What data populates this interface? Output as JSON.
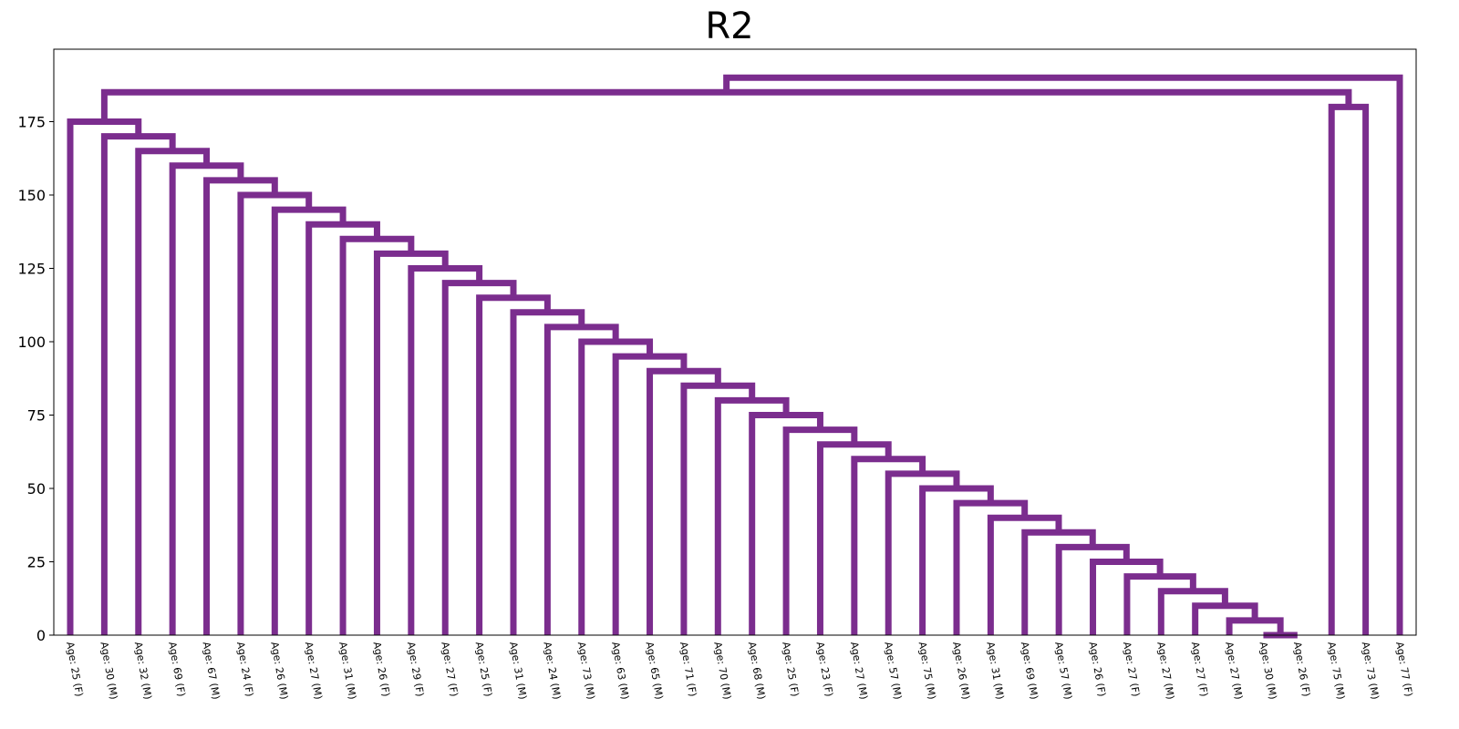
{
  "chart_data": {
    "type": "dendrogram",
    "title": "R2",
    "xlabel": "",
    "ylabel": "",
    "ylim": [
      0,
      200
    ],
    "yticks": [
      0,
      25,
      50,
      75,
      100,
      125,
      150,
      175
    ],
    "grid": false,
    "link_color": "#7b2d8e",
    "leaves": [
      "Age: 25 (F)",
      "Age: 30 (M)",
      "Age: 32 (M)",
      "Age: 69 (F)",
      "Age: 67 (M)",
      "Age: 24 (F)",
      "Age: 26 (M)",
      "Age: 27 (M)",
      "Age: 31 (M)",
      "Age: 26 (F)",
      "Age: 29 (F)",
      "Age: 27 (F)",
      "Age: 25 (F)",
      "Age: 31 (M)",
      "Age: 24 (M)",
      "Age: 73 (M)",
      "Age: 63 (M)",
      "Age: 65 (M)",
      "Age: 71 (F)",
      "Age: 70 (M)",
      "Age: 68 (M)",
      "Age: 25 (F)",
      "Age: 23 (F)",
      "Age: 27 (M)",
      "Age: 57 (M)",
      "Age: 75 (M)",
      "Age: 26 (M)",
      "Age: 31 (M)",
      "Age: 69 (M)",
      "Age: 57 (M)",
      "Age: 26 (F)",
      "Age: 27 (F)",
      "Age: 27 (M)",
      "Age: 27 (F)",
      "Age: 27 (M)",
      "Age: 30 (M)",
      "Age: 26 (F)",
      "Age: 75 (M)",
      "Age: 73 (M)",
      "Age: 77 (F)"
    ],
    "merges": [
      {
        "left": 35,
        "right": 36,
        "height": 0
      },
      {
        "left": 34,
        "right": 40,
        "height": 5
      },
      {
        "left": 33,
        "right": 41,
        "height": 10
      },
      {
        "left": 32,
        "right": 42,
        "height": 15
      },
      {
        "left": 31,
        "right": 43,
        "height": 20
      },
      {
        "left": 30,
        "right": 44,
        "height": 25
      },
      {
        "left": 29,
        "right": 45,
        "height": 30
      },
      {
        "left": 28,
        "right": 46,
        "height": 35
      },
      {
        "left": 27,
        "right": 47,
        "height": 40
      },
      {
        "left": 26,
        "right": 48,
        "height": 45
      },
      {
        "left": 25,
        "right": 49,
        "height": 50
      },
      {
        "left": 24,
        "right": 50,
        "height": 55
      },
      {
        "left": 23,
        "right": 51,
        "height": 60
      },
      {
        "left": 22,
        "right": 52,
        "height": 65
      },
      {
        "left": 21,
        "right": 53,
        "height": 70
      },
      {
        "left": 20,
        "right": 54,
        "height": 75
      },
      {
        "left": 19,
        "right": 55,
        "height": 80
      },
      {
        "left": 18,
        "right": 56,
        "height": 85
      },
      {
        "left": 17,
        "right": 57,
        "height": 90
      },
      {
        "left": 16,
        "right": 58,
        "height": 95
      },
      {
        "left": 15,
        "right": 59,
        "height": 100
      },
      {
        "left": 14,
        "right": 60,
        "height": 105
      },
      {
        "left": 13,
        "right": 61,
        "height": 110
      },
      {
        "left": 12,
        "right": 62,
        "height": 115
      },
      {
        "left": 11,
        "right": 63,
        "height": 120
      },
      {
        "left": 10,
        "right": 64,
        "height": 125
      },
      {
        "left": 9,
        "right": 65,
        "height": 130
      },
      {
        "left": 8,
        "right": 66,
        "height": 135
      },
      {
        "left": 7,
        "right": 67,
        "height": 140
      },
      {
        "left": 6,
        "right": 68,
        "height": 145
      },
      {
        "left": 5,
        "right": 69,
        "height": 150
      },
      {
        "left": 4,
        "right": 70,
        "height": 155
      },
      {
        "left": 3,
        "right": 71,
        "height": 160
      },
      {
        "left": 2,
        "right": 72,
        "height": 165
      },
      {
        "left": 1,
        "right": 73,
        "height": 170
      },
      {
        "left": 0,
        "right": 74,
        "height": 175
      },
      {
        "left": 37,
        "right": 38,
        "height": 180
      },
      {
        "left": 75,
        "right": 76,
        "height": 185
      },
      {
        "left": 77,
        "right": 39,
        "height": 190
      }
    ]
  }
}
